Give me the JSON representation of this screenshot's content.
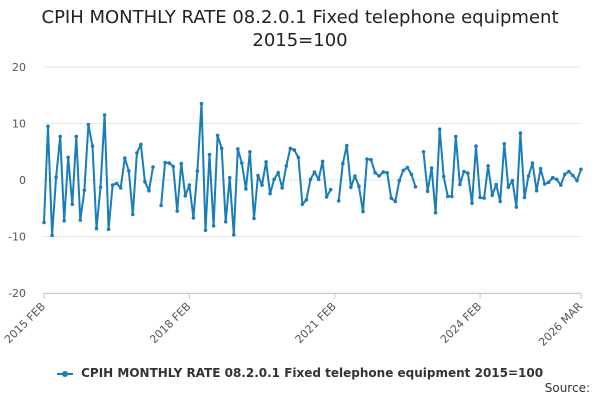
{
  "chart_data": {
    "type": "line",
    "title": "CPIH MONTHLY RATE 08.2.0.1 Fixed telephone equipment 2015=100",
    "xlabel": "",
    "ylabel": "",
    "ylim": [
      -20,
      20
    ],
    "yticks": [
      -20,
      -10,
      0,
      10,
      20
    ],
    "x_tick_labels": [
      "2015 FEB",
      "2018 FEB",
      "2021 FEB",
      "2024 FEB",
      "2026 MAR"
    ],
    "x_start": "2015 FEB",
    "x_end": "2026 MAR",
    "legend_position": "bottom",
    "series": [
      {
        "name": "CPIH MONTHLY RATE 08.2.0.1 Fixed telephone equipment 2015=100",
        "color": "#1a7db8",
        "values": [
          -7.5,
          9.5,
          -9.8,
          0.5,
          7.7,
          -7.2,
          4.0,
          -4.3,
          7.7,
          -7.1,
          -1.8,
          9.8,
          6.0,
          -8.6,
          -1.3,
          11.5,
          -8.7,
          -0.9,
          -0.6,
          -1.4,
          3.9,
          1.6,
          -6.1,
          4.8,
          6.3,
          -0.3,
          -1.9,
          2.3,
          null,
          -4.5,
          3.1,
          3.0,
          2.4,
          -5.5,
          2.9,
          -2.8,
          -0.9,
          -6.7,
          1.6,
          13.5,
          -8.9,
          4.5,
          -8.1,
          7.9,
          5.6,
          -7.4,
          0.4,
          -9.7,
          5.5,
          3.0,
          -1.6,
          5.0,
          -6.8,
          0.8,
          -0.9,
          3.2,
          -2.4,
          0.1,
          1.3,
          -1.4,
          2.5,
          5.6,
          5.3,
          4.0,
          -4.3,
          -3.5,
          0.1,
          1.4,
          0.1,
          3.3,
          -3.0,
          -1.7,
          null,
          -3.7,
          2.9,
          6.1,
          -1.3,
          0.7,
          -1.1,
          -5.6,
          3.7,
          3.6,
          1.3,
          0.7,
          1.4,
          1.3,
          -3.2,
          -3.8,
          -0.1,
          1.7,
          2.2,
          1.0,
          -1.2,
          null,
          5.0,
          -2.0,
          2.1,
          -5.8,
          9.0,
          0.6,
          -2.9,
          -2.9,
          7.7,
          -0.8,
          1.5,
          1.2,
          -4.1,
          6.0,
          -3.1,
          -3.2,
          2.5,
          -2.7,
          -0.8,
          -3.8,
          6.4,
          -1.3,
          -0.1,
          -4.8,
          8.3,
          -3.1,
          0.7,
          3.0,
          -1.9,
          2.0,
          -0.7,
          -0.4,
          0.4,
          0.1,
          -0.9,
          1.0,
          1.5,
          0.8,
          -0.1,
          1.9
        ]
      }
    ]
  },
  "legend": {
    "label": "CPIH MONTHLY RATE 08.2.0.1 Fixed telephone equipment 2015=100"
  },
  "footer": {
    "source_label": "Source:"
  }
}
